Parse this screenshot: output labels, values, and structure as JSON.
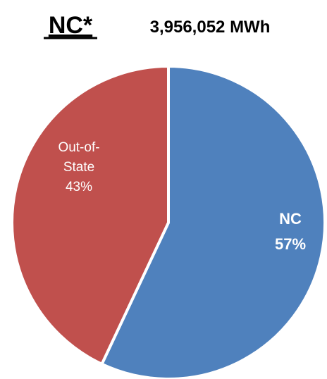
{
  "header": {
    "title": "NC*",
    "total": "3,956,052 MWh"
  },
  "chart_data": {
    "type": "pie",
    "title": "NC*",
    "subtitle": "3,956,052 MWh",
    "slices": [
      {
        "name": "NC",
        "value": 57,
        "color": "#4f81bd",
        "label_lines": [
          "NC",
          "57%"
        ],
        "label_color": "#ffffff",
        "label_bold": true
      },
      {
        "name": "Out-of-State",
        "value": 43,
        "color": "#c0504d",
        "label_lines": [
          "Out-of-",
          "State",
          "43%"
        ],
        "label_color": "#ffffff",
        "label_bold": false
      }
    ],
    "start_angle": "12 o'clock",
    "direction": "clockwise",
    "slice_border_color": "#ffffff"
  }
}
